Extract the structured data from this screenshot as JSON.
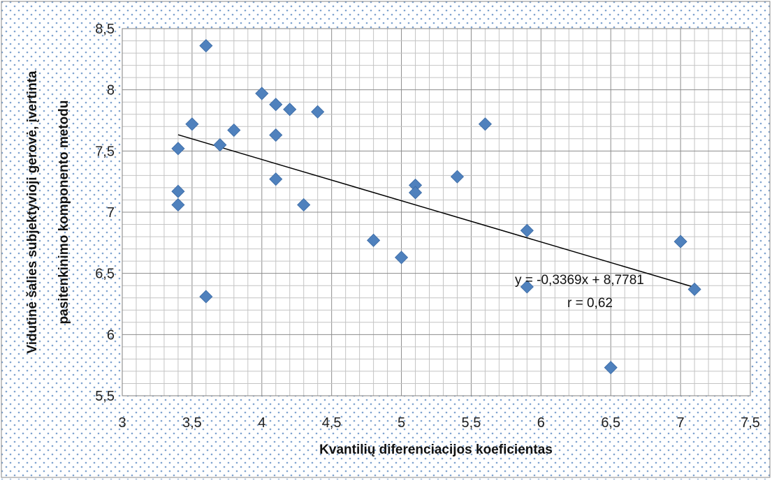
{
  "chart_data": {
    "type": "scatter",
    "xlabel": "Kvantilių diferenciacijos koeficientas",
    "ylabel_lines": [
      "Vidutinė šalies subjektyvioji gerovė, įvertinta",
      "pasitenkinimo komponento metodu"
    ],
    "xlim": [
      3,
      7.5
    ],
    "ylim": [
      5.5,
      8.5
    ],
    "x_ticks": [
      "3",
      "3,5",
      "4",
      "4,5",
      "5",
      "5,5",
      "6",
      "6,5",
      "7",
      "7,5"
    ],
    "y_ticks": [
      "8,5",
      "8",
      "7,5",
      "7",
      "6,5",
      "6",
      "5,5"
    ],
    "grid": true,
    "marker_color": "#4f81bd",
    "points": [
      {
        "x": 3.4,
        "y": 7.52
      },
      {
        "x": 3.4,
        "y": 7.17
      },
      {
        "x": 3.4,
        "y": 7.06
      },
      {
        "x": 3.5,
        "y": 7.72
      },
      {
        "x": 3.6,
        "y": 8.36
      },
      {
        "x": 3.6,
        "y": 6.31
      },
      {
        "x": 3.7,
        "y": 7.55
      },
      {
        "x": 3.8,
        "y": 7.67
      },
      {
        "x": 4.0,
        "y": 7.97
      },
      {
        "x": 4.1,
        "y": 7.88
      },
      {
        "x": 4.1,
        "y": 7.63
      },
      {
        "x": 4.1,
        "y": 7.27
      },
      {
        "x": 4.2,
        "y": 7.84
      },
      {
        "x": 4.3,
        "y": 7.06
      },
      {
        "x": 4.4,
        "y": 7.82
      },
      {
        "x": 4.8,
        "y": 6.77
      },
      {
        "x": 5.0,
        "y": 6.63
      },
      {
        "x": 5.1,
        "y": 7.22
      },
      {
        "x": 5.1,
        "y": 7.16
      },
      {
        "x": 5.4,
        "y": 7.29
      },
      {
        "x": 5.6,
        "y": 7.72
      },
      {
        "x": 5.9,
        "y": 6.85
      },
      {
        "x": 5.9,
        "y": 6.39
      },
      {
        "x": 6.5,
        "y": 5.73
      },
      {
        "x": 7.0,
        "y": 6.76
      },
      {
        "x": 7.1,
        "y": 6.37
      }
    ],
    "trendline": {
      "slope": -0.3369,
      "intercept": 8.7781,
      "x_range": [
        3.4,
        7.1
      ]
    },
    "annotations": {
      "equation": "y = -0,3369x + 8,7781",
      "r": "r = 0,62"
    }
  }
}
